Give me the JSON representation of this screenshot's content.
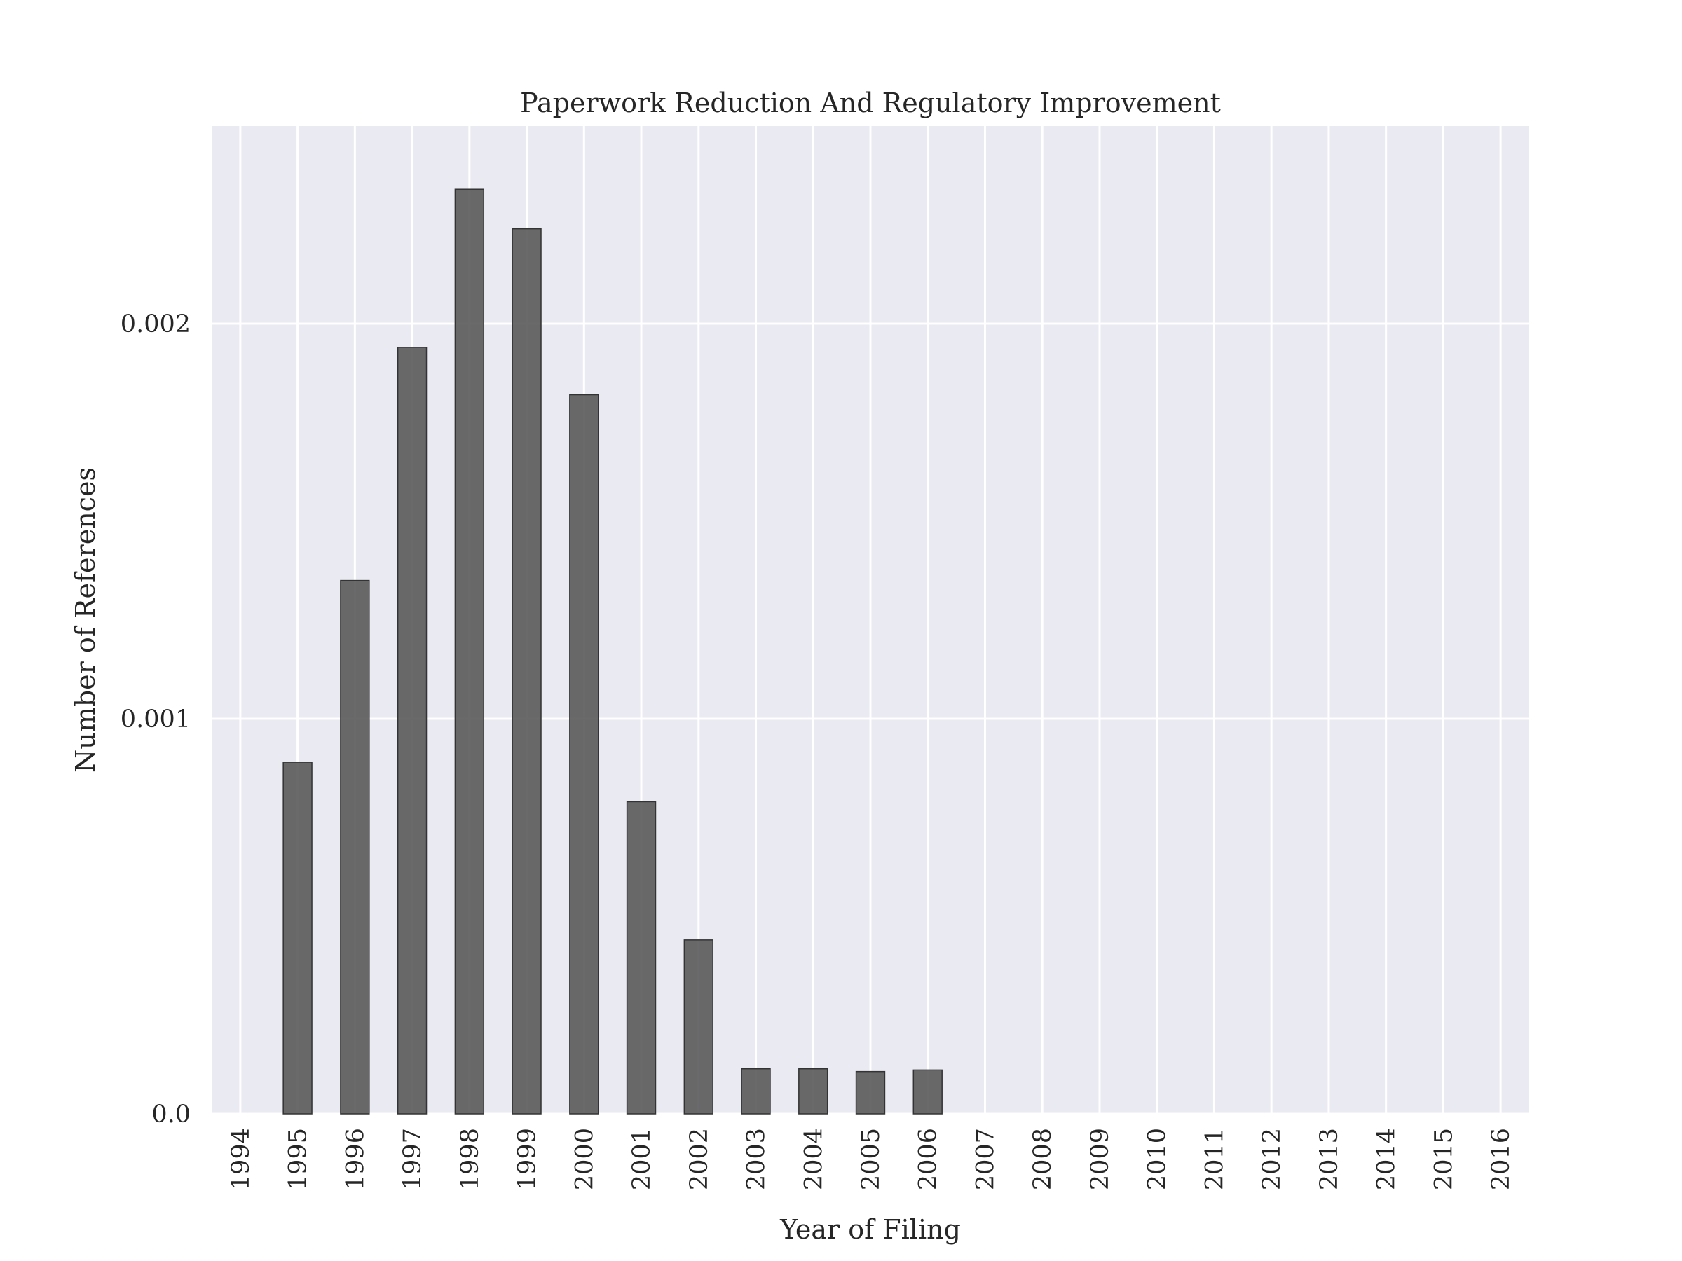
{
  "chart_data": {
    "type": "bar",
    "title": "Paperwork Reduction And Regulatory Improvement",
    "xlabel": "Year of Filing",
    "ylabel": "Number of References",
    "categories": [
      "1994",
      "1995",
      "1996",
      "1997",
      "1998",
      "1999",
      "2000",
      "2001",
      "2002",
      "2003",
      "2004",
      "2005",
      "2006",
      "2007",
      "2008",
      "2009",
      "2010",
      "2011",
      "2012",
      "2013",
      "2014",
      "2015",
      "2016"
    ],
    "values": [
      0,
      0.00089,
      0.00135,
      0.00194,
      0.00234,
      0.00224,
      0.00182,
      0.00079,
      0.00044,
      0.000114,
      0.000114,
      0.000107,
      0.000111,
      0,
      0,
      0,
      0,
      0,
      0,
      0,
      0,
      0,
      0
    ],
    "yticks": [
      0.0,
      0.001,
      0.002
    ],
    "ytick_labels": [
      "0.0",
      "0.001",
      "0.002"
    ],
    "ylim": [
      0,
      0.0025
    ],
    "grid": true,
    "colors": {
      "plot_background": "#eaeaf2",
      "grid": "#ffffff",
      "bar_fill": "#555555",
      "bar_stroke": "#333333"
    }
  }
}
